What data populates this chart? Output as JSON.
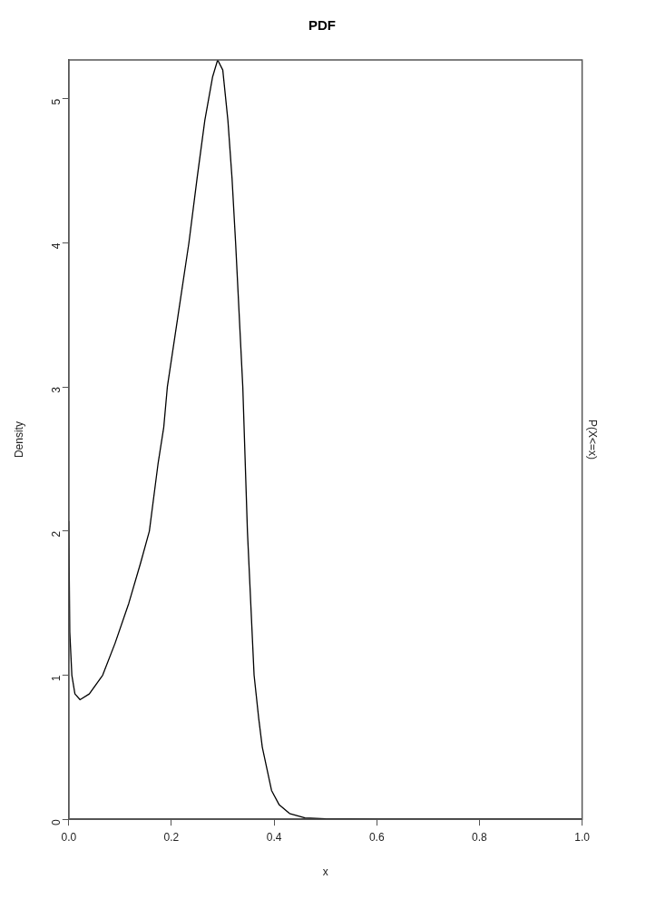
{
  "chart_data": {
    "type": "line",
    "title": "PDF",
    "xlabel": "x",
    "ylabel": "Density",
    "y2label": "P(X<=x)",
    "xlim": [
      0,
      1
    ],
    "xticks": [
      {
        "value": 0,
        "label": "0.0"
      },
      {
        "value": 0.2,
        "label": "0.2"
      },
      {
        "value": 0.4,
        "label": "0.4"
      },
      {
        "value": 0.6,
        "label": "0.6"
      },
      {
        "value": 0.8,
        "label": "0.8"
      },
      {
        "value": 1,
        "label": "1.0"
      }
    ],
    "ylim": [
      0,
      5.27
    ],
    "yticks": [
      0,
      1,
      2,
      3,
      4,
      5
    ],
    "grid": false,
    "legend": false,
    "marker": "none",
    "line_style": "solid",
    "series": [
      {
        "color": "#000000",
        "x": [
          0,
          0.002,
          0.006,
          0.012,
          0.022,
          0.04,
          0.066,
          0.09,
          0.117,
          0.14,
          0.157,
          0.174,
          0.185,
          0.192,
          0.213,
          0.234,
          0.25,
          0.265,
          0.28,
          0.29,
          0.3,
          0.31,
          0.318,
          0.325,
          0.339,
          0.348,
          0.361,
          0.37,
          0.377,
          0.395,
          0.41,
          0.43,
          0.46,
          0.5,
          0.6,
          1
        ],
        "values": [
          2.07,
          1.3,
          1.0,
          0.87,
          0.83,
          0.87,
          1.0,
          1.22,
          1.5,
          1.78,
          2.0,
          2.47,
          2.72,
          3.0,
          3.5,
          4.0,
          4.45,
          4.85,
          5.15,
          5.27,
          5.2,
          4.85,
          4.45,
          4.0,
          3.0,
          2.0,
          1.0,
          0.7,
          0.5,
          0.2,
          0.1,
          0.04,
          0.01,
          0.003,
          0,
          0
        ]
      }
    ]
  }
}
